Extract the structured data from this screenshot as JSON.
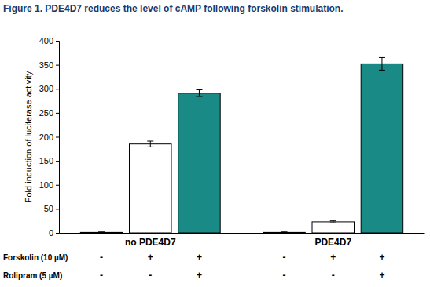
{
  "chart_data": {
    "type": "bar",
    "title": "Figure 1. PDE4D7 reduces the level of cAMP following forskolin stimulation.",
    "y_label": "Fold induction of luciferase activity",
    "categories": [
      "no PDE4D7",
      "PDE4D7"
    ],
    "series": [
      {
        "color": "#ffffff",
        "values": [
          1,
          1
        ],
        "errors": [
          1,
          1
        ]
      },
      {
        "color": "#ffffff",
        "values": [
          185,
          23
        ],
        "errors": [
          6,
          2
        ]
      },
      {
        "color": "#1a8a87",
        "values": [
          291,
          352
        ],
        "errors": [
          7,
          13
        ]
      }
    ],
    "treatments": [
      {
        "label": "Forskolin (10 µM)",
        "values": [
          "-",
          "+",
          "+",
          "-",
          "+",
          "+"
        ]
      },
      {
        "label": "Rolipram (5 µM)",
        "values": [
          "-",
          "-",
          "+",
          "-",
          "-",
          "+"
        ]
      }
    ],
    "ylim": [
      0,
      400
    ],
    "yticks": [
      0,
      50,
      100,
      150,
      200,
      250,
      300,
      350,
      400
    ],
    "grid": false
  }
}
